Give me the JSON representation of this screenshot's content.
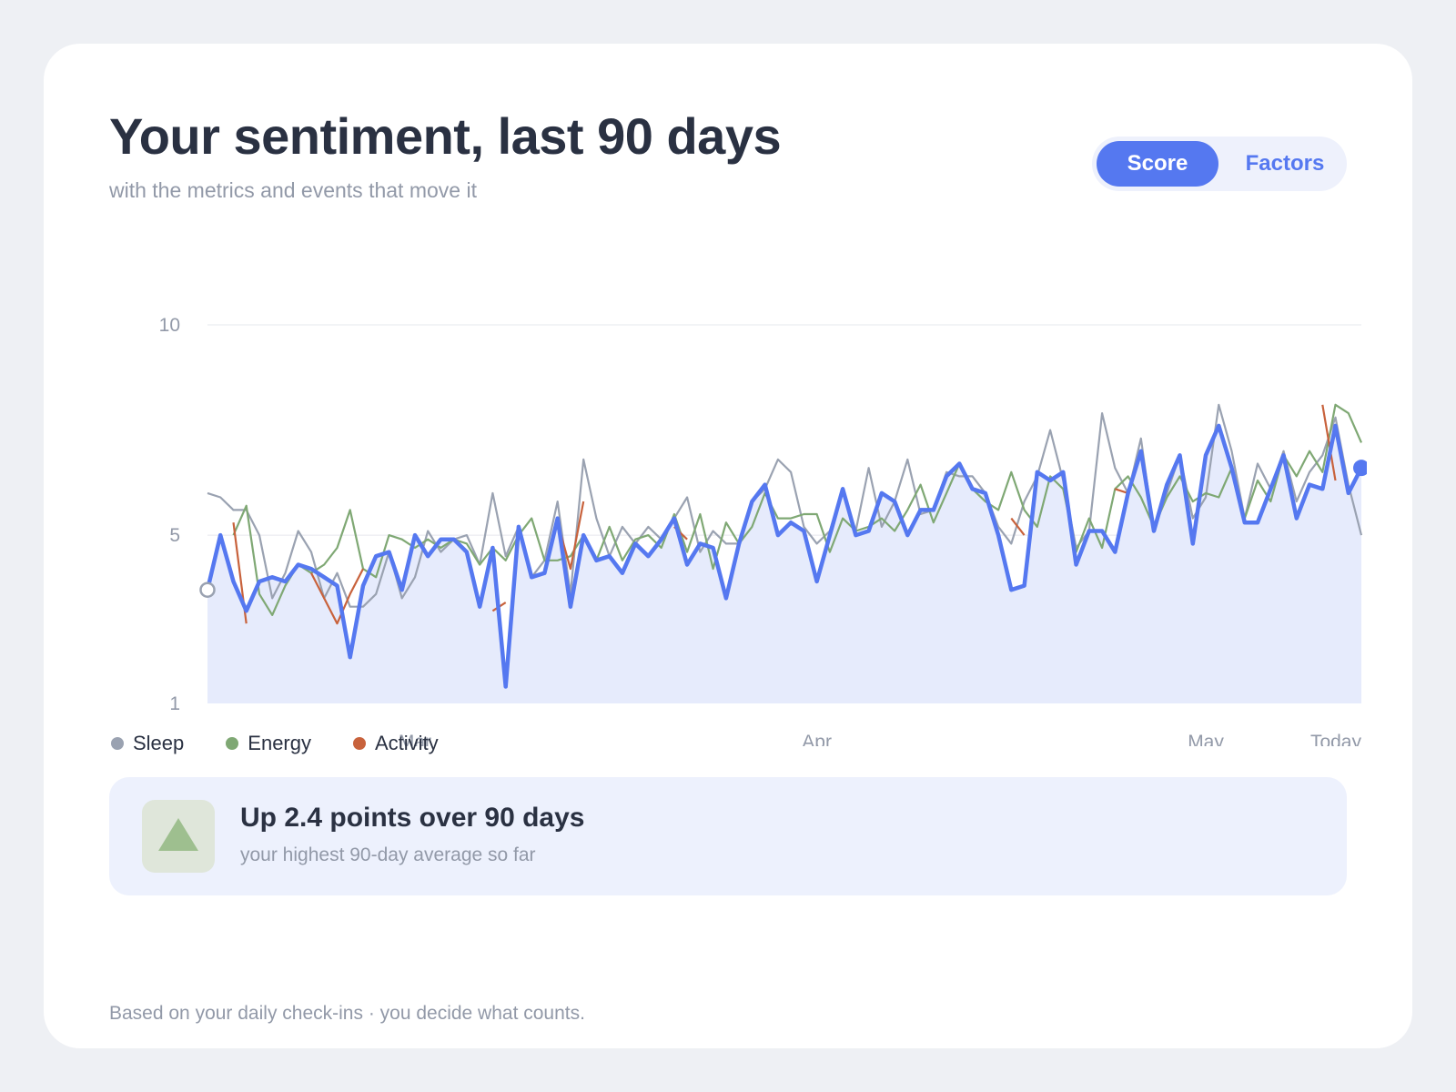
{
  "header": {
    "title": "Your sentiment, last 90 days",
    "subtitle": "with the metrics and events that move it"
  },
  "toggle": {
    "options": [
      {
        "label": "Score",
        "active": true
      },
      {
        "label": "Factors",
        "active": false
      }
    ]
  },
  "chart_data": {
    "type": "line",
    "title": "",
    "xlabel": "",
    "ylabel": "",
    "ylim": [
      1,
      10
    ],
    "yticks": [
      1,
      5,
      10
    ],
    "x_tick_labels": [
      {
        "label": "Mar",
        "day": 16
      },
      {
        "label": "Apr",
        "day": 47
      },
      {
        "label": "May",
        "day": 77
      },
      {
        "label": "Today",
        "day": 89
      }
    ],
    "grid": true,
    "legend_position": "bottom-left",
    "main_series": {
      "name": "Score",
      "color": "#5578f0",
      "values": [
        3.7,
        5.0,
        3.9,
        3.2,
        3.9,
        4.0,
        3.9,
        4.3,
        4.2,
        4.0,
        3.8,
        2.1,
        3.8,
        4.5,
        4.6,
        3.7,
        5.0,
        4.5,
        4.9,
        4.9,
        4.6,
        3.3,
        4.7,
        1.4,
        5.2,
        4.0,
        4.1,
        5.4,
        3.3,
        5.0,
        4.4,
        4.5,
        4.1,
        4.8,
        4.5,
        4.9,
        5.4,
        4.3,
        4.8,
        4.7,
        3.5,
        4.8,
        5.8,
        6.2,
        5.0,
        5.3,
        5.1,
        3.9,
        5.0,
        6.1,
        5.0,
        5.1,
        6.0,
        5.8,
        5.0,
        5.6,
        5.6,
        6.4,
        6.7,
        6.1,
        6.0,
        5.0,
        3.7,
        3.8,
        6.5,
        6.3,
        6.5,
        4.3,
        5.1,
        5.1,
        4.6,
        6.0,
        7.0,
        5.1,
        6.2,
        6.9,
        4.8,
        6.9,
        7.6,
        6.6,
        5.3,
        5.3,
        6.1,
        6.9,
        5.4,
        6.2,
        6.1,
        7.6,
        6.0,
        6.6
      ]
    },
    "series": [
      {
        "name": "Sleep",
        "color": "#9aa2b1",
        "values": [
          6.0,
          5.9,
          5.6,
          5.6,
          5.0,
          3.5,
          4.1,
          5.1,
          4.6,
          3.5,
          4.1,
          3.3,
          3.3,
          3.6,
          4.6,
          3.5,
          4.0,
          5.1,
          4.6,
          4.9,
          5.0,
          4.3,
          6.0,
          4.5,
          5.2,
          4.0,
          4.4,
          5.8,
          3.6,
          6.8,
          5.4,
          4.5,
          5.2,
          4.8,
          5.2,
          4.9,
          5.4,
          5.9,
          4.6,
          5.1,
          4.8,
          4.8,
          5.8,
          6.1,
          6.8,
          6.5,
          5.2,
          4.8,
          5.1,
          6.1,
          5.1,
          6.6,
          5.2,
          5.8,
          6.8,
          5.5,
          5.6,
          6.5,
          6.4,
          6.4,
          6.0,
          5.2,
          4.8,
          5.8,
          6.4,
          7.5,
          6.3,
          4.7,
          5.1,
          7.9,
          6.6,
          6.0,
          7.3,
          5.1,
          6.0,
          6.9,
          5.4,
          5.9,
          8.1,
          7.0,
          5.4,
          6.7,
          6.1,
          7.0,
          5.8,
          6.5,
          6.9,
          7.8,
          6.2,
          5.0
        ]
      },
      {
        "name": "Energy",
        "color": "#7fa874",
        "values": [
          null,
          null,
          5.0,
          5.7,
          3.6,
          3.1,
          3.8,
          4.3,
          4.1,
          4.3,
          4.7,
          5.6,
          4.2,
          4.0,
          5.0,
          4.9,
          4.7,
          4.9,
          4.7,
          4.9,
          4.8,
          4.3,
          4.7,
          4.4,
          5.0,
          5.4,
          4.4,
          4.4,
          4.5,
          5.0,
          4.4,
          5.2,
          4.4,
          4.9,
          5.0,
          4.7,
          5.5,
          4.6,
          5.5,
          4.2,
          5.3,
          4.8,
          5.2,
          6.0,
          5.4,
          5.4,
          5.5,
          5.5,
          4.6,
          5.4,
          5.1,
          5.2,
          5.4,
          5.1,
          5.6,
          6.2,
          5.3,
          6.0,
          6.7,
          6.1,
          5.8,
          5.6,
          6.5,
          5.6,
          5.2,
          6.4,
          6.1,
          4.6,
          5.4,
          4.7,
          6.1,
          6.4,
          5.9,
          5.2,
          5.9,
          6.4,
          5.8,
          6.0,
          5.9,
          6.6,
          5.4,
          6.3,
          5.8,
          6.9,
          6.4,
          7.0,
          6.5,
          8.1,
          7.9,
          7.2
        ]
      },
      {
        "name": "Activity",
        "color": "#c8623c",
        "values": [
          2.3,
          null,
          5.3,
          2.9,
          null,
          null,
          null,
          null,
          4.1,
          3.5,
          2.9,
          3.6,
          4.2,
          null,
          null,
          5.6,
          null,
          null,
          null,
          null,
          null,
          null,
          3.2,
          3.4,
          null,
          null,
          null,
          5.3,
          4.2,
          5.8,
          null,
          null,
          null,
          4.9,
          null,
          null,
          5.2,
          4.9,
          null,
          null,
          null,
          null,
          null,
          null,
          null,
          null,
          null,
          4.6,
          null,
          null,
          null,
          null,
          null,
          null,
          6.6,
          null,
          null,
          null,
          null,
          null,
          null,
          null,
          5.4,
          5.0,
          null,
          null,
          null,
          5.7,
          null,
          null,
          6.1,
          6.0,
          null,
          null,
          null,
          null,
          null,
          null,
          null,
          null,
          5.2,
          null,
          null,
          null,
          null,
          null,
          8.1,
          6.3,
          null,
          4.6
        ]
      }
    ]
  },
  "summary": {
    "icon": "triangle-up-icon",
    "title": "Up 2.4 points over 90 days",
    "subtitle": "your highest 90-day average so far"
  },
  "footer": {
    "text": "Based on your daily check-ins · you decide what counts."
  }
}
